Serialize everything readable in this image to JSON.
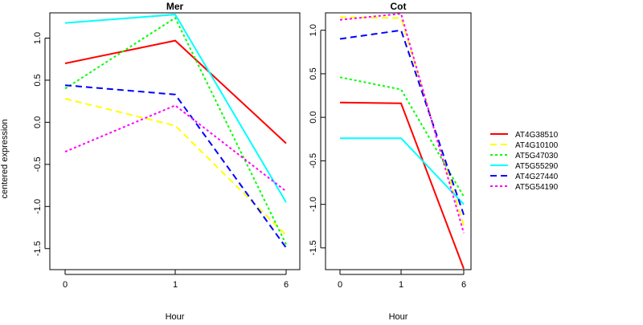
{
  "chart_data": {
    "type": "line",
    "ylabel": "centered expression",
    "legend": {
      "placement": "right",
      "series": [
        {
          "name": "AT4G38510",
          "color": "#ff0000",
          "dash": "solid"
        },
        {
          "name": "AT4G10100",
          "color": "#ffff00",
          "dash": "dashed"
        },
        {
          "name": "AT5G47030",
          "color": "#00ff00",
          "dash": "dotted"
        },
        {
          "name": "AT5G55290",
          "color": "#00ffff",
          "dash": "solid"
        },
        {
          "name": "AT4G27440",
          "color": "#0000ff",
          "dash": "dashed"
        },
        {
          "name": "AT5G54190",
          "color": "#ff00ff",
          "dash": "dotted"
        }
      ]
    },
    "panels": [
      {
        "title": "Mer",
        "xlabel": "Hour",
        "x": [
          "0",
          "1",
          "6"
        ],
        "ylim": [
          -1.75,
          1.3
        ],
        "yticks": [
          "1.0",
          "0.5",
          "0.0",
          "-0.5",
          "-1.0",
          "-1.5"
        ],
        "series": [
          {
            "name": "AT4G38510",
            "values": [
              0.7,
              0.97,
              -0.25
            ]
          },
          {
            "name": "AT4G10100",
            "values": [
              0.28,
              -0.04,
              -1.34
            ]
          },
          {
            "name": "AT5G47030",
            "values": [
              0.4,
              1.24,
              -1.45
            ]
          },
          {
            "name": "AT5G55290",
            "values": [
              1.18,
              1.28,
              -0.95
            ]
          },
          {
            "name": "AT4G27440",
            "values": [
              0.44,
              0.33,
              -1.49
            ]
          },
          {
            "name": "AT5G54190",
            "values": [
              -0.35,
              0.2,
              -0.82
            ]
          }
        ]
      },
      {
        "title": "Cot",
        "xlabel": "Hour",
        "x": [
          "0",
          "1",
          "6"
        ],
        "ylim": [
          -1.75,
          1.2
        ],
        "yticks": [
          "1.0",
          "0.5",
          "0.0",
          "-0.5",
          "-1.0",
          "-1.5"
        ],
        "series": [
          {
            "name": "AT4G38510",
            "values": [
              0.17,
              0.16,
              -1.74
            ]
          },
          {
            "name": "AT4G10100",
            "values": [
              1.15,
              1.14,
              -1.24
            ]
          },
          {
            "name": "AT5G47030",
            "values": [
              0.46,
              0.32,
              -0.91
            ]
          },
          {
            "name": "AT5G55290",
            "values": [
              -0.24,
              -0.24,
              -1.0
            ]
          },
          {
            "name": "AT4G27440",
            "values": [
              0.9,
              1.0,
              -1.12
            ]
          },
          {
            "name": "AT5G54190",
            "values": [
              1.12,
              1.19,
              -1.33
            ]
          }
        ]
      }
    ]
  }
}
